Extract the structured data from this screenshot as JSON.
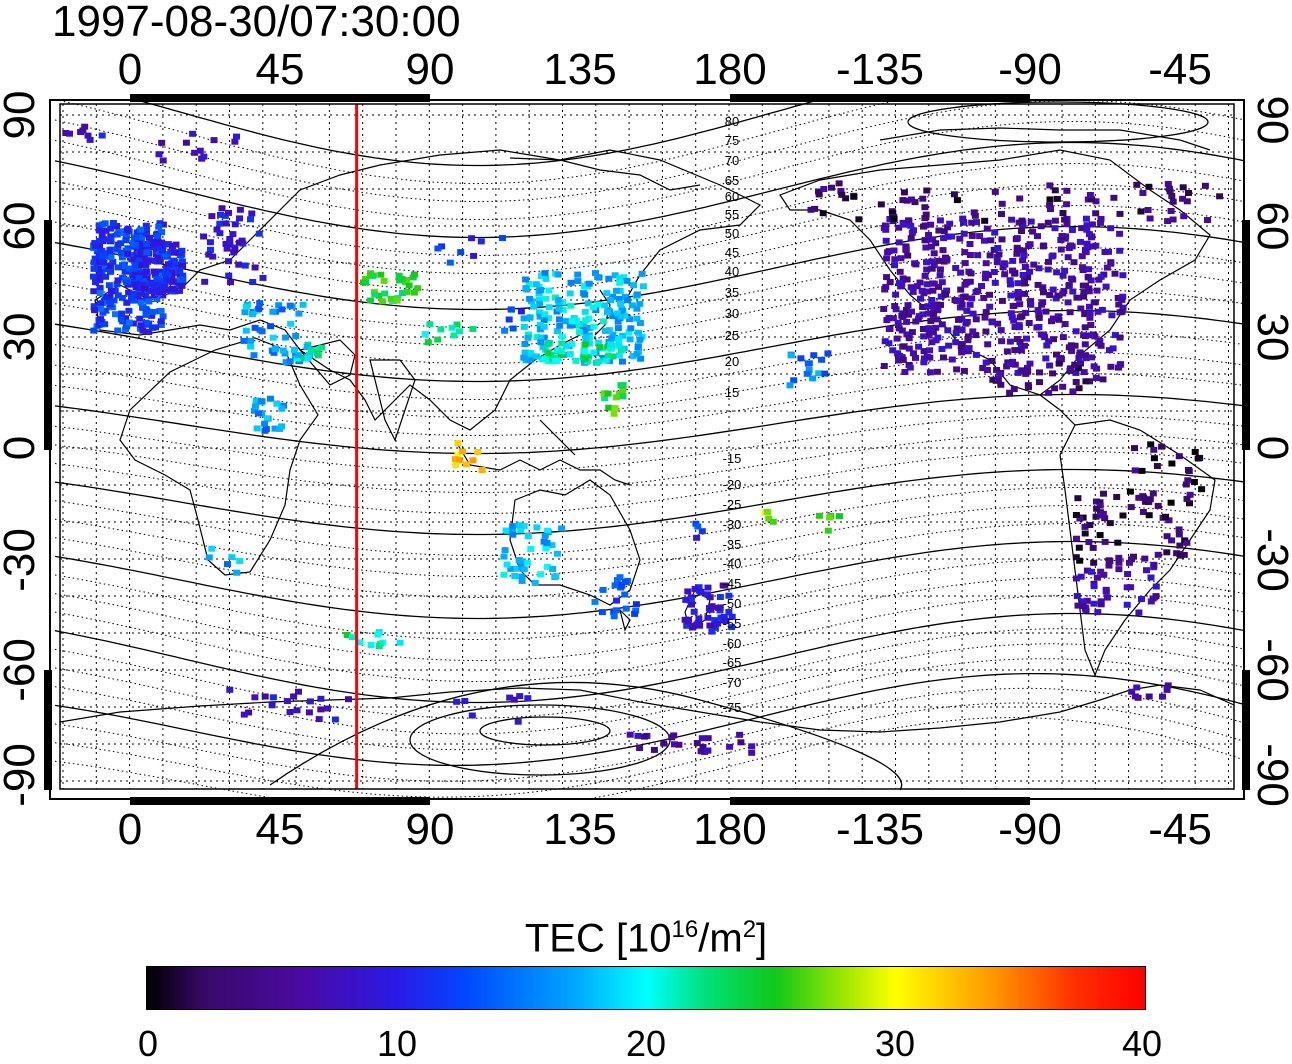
{
  "title": "1997-08-30/07:30:00",
  "lon_ticks": [
    "0",
    "45",
    "90",
    "135",
    "180",
    "-135",
    "-90",
    "-45"
  ],
  "lat_ticks": [
    "90",
    "60",
    "30",
    "0",
    "-30",
    "-60",
    "-90"
  ],
  "contour_labels": [
    "80",
    "75",
    "70",
    "65",
    "60",
    "55",
    "50",
    "45",
    "40",
    "35",
    "30",
    "25",
    "20",
    "15",
    "-15",
    "-20",
    "-25",
    "-30",
    "-35",
    "-40",
    "-45",
    "-50",
    "-55",
    "-60",
    "-65",
    "-70",
    "-75"
  ],
  "red_line_longitude": 68,
  "colorbar": {
    "label_main": "TEC  [10",
    "label_sup1": "16",
    "label_mid": "/m",
    "label_sup2": "2",
    "label_end": "]",
    "ticks": [
      "0",
      "10",
      "20",
      "30",
      "40"
    ],
    "min": 0,
    "max": 40
  },
  "colors": {
    "red_line": "#ff0000",
    "frame": "#000000"
  }
}
